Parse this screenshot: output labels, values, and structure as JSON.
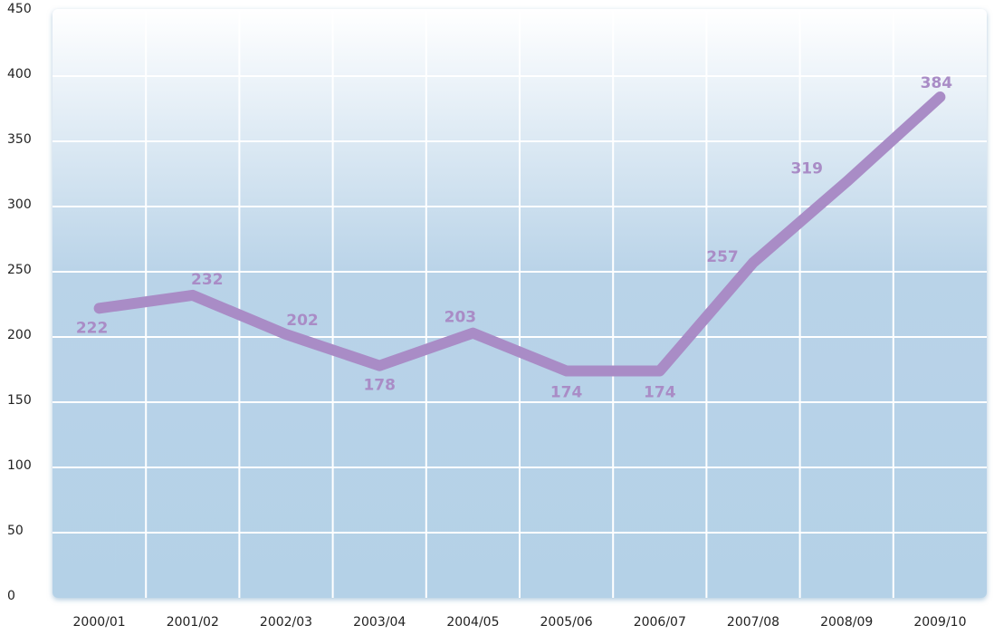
{
  "chart_data": {
    "type": "line",
    "categories": [
      "2000/01",
      "2001/02",
      "2002/03",
      "2003/04",
      "2004/05",
      "2005/06",
      "2006/07",
      "2007/08",
      "2008/09",
      "2009/10"
    ],
    "series": [
      {
        "name": null,
        "color": "#a98cc6",
        "values": [
          222,
          232,
          202,
          178,
          203,
          174,
          174,
          257,
          319,
          384
        ]
      }
    ],
    "ylim": [
      0,
      450
    ],
    "yticks": [
      0,
      50,
      100,
      150,
      200,
      250,
      300,
      350,
      400,
      450
    ],
    "grid": true
  }
}
